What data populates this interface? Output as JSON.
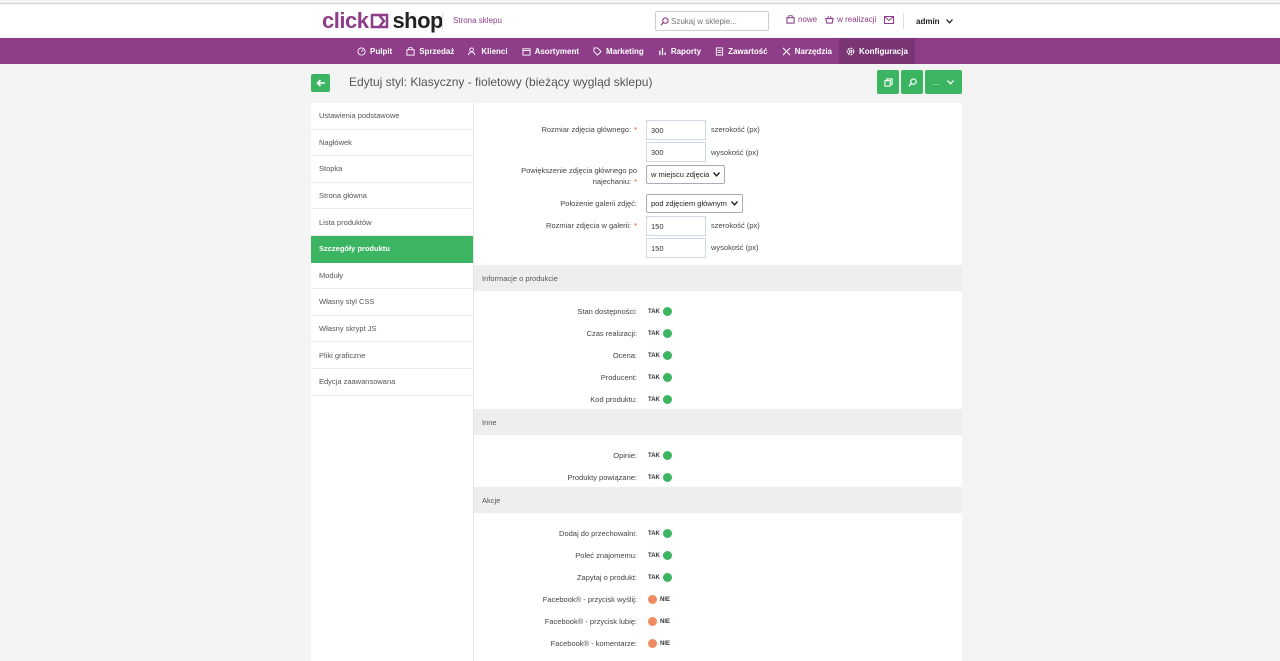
{
  "brand": {
    "logo_left": "click",
    "logo_right": "shop",
    "store_link": "Strona sklepu",
    "accent": "#8e3e88",
    "green": "#3cb563"
  },
  "search": {
    "placeholder": "Szukaj w sklepie..."
  },
  "top_links": {
    "new": "nowe",
    "in_progress": "w realizacji",
    "user": "admin"
  },
  "nav": [
    {
      "label": "Pulpit",
      "icon": "dashboard-icon"
    },
    {
      "label": "Sprzedaż",
      "icon": "cart-icon"
    },
    {
      "label": "Klienci",
      "icon": "users-icon"
    },
    {
      "label": "Asortyment",
      "icon": "box-icon"
    },
    {
      "label": "Marketing",
      "icon": "tag-icon"
    },
    {
      "label": "Raporty",
      "icon": "chart-icon"
    },
    {
      "label": "Zawartość",
      "icon": "page-icon"
    },
    {
      "label": "Narzędzia",
      "icon": "tools-icon"
    },
    {
      "label": "Konfiguracja",
      "icon": "gear-icon"
    }
  ],
  "page": {
    "title": "Edytuj styl: Klasyczny - fioletowy (bieżący wygląd sklepu)",
    "more_label": "..."
  },
  "sidebar": [
    "Ustawienia podstawowe",
    "Nagłówek",
    "Stopka",
    "Strona główna",
    "Lista produktów",
    "Szczegóły produktu",
    "Moduły",
    "Własny styl CSS",
    "Własny skrypt JS",
    "Pliki graficzne",
    "Edycja zaawansowana"
  ],
  "form": {
    "main_image_label": "Rozmiar zdjęcia głównego:",
    "main_width": "300",
    "main_height": "300",
    "width_unit": "szerokość (px)",
    "height_unit": "wysokość (px)",
    "zoom_label": "Powiększenie zdjęcia głównego po najechaniu:",
    "zoom_value": "w miejscu zdjęcia",
    "gallery_pos_label": "Położenie galerii zdjęć:",
    "gallery_pos_value": "pod zdjęciem głównym",
    "gallery_size_label": "Rozmiar zdjęcia w galerii:",
    "gallery_width": "150",
    "gallery_height": "150"
  },
  "sections": {
    "info": "Informacje o produkcie",
    "other": "Inne",
    "actions": "Akcje"
  },
  "toggles": {
    "availability": {
      "label": "Stan dostępności:",
      "value": "TAK"
    },
    "lead_time": {
      "label": "Czas realizacji:",
      "value": "TAK"
    },
    "rating": {
      "label": "Ocena:",
      "value": "TAK"
    },
    "producer": {
      "label": "Producent:",
      "value": "TAK"
    },
    "code": {
      "label": "Kod produktu:",
      "value": "TAK"
    },
    "reviews": {
      "label": "Opinie:",
      "value": "TAK"
    },
    "related": {
      "label": "Produkty powiązane:",
      "value": "TAK"
    },
    "storage": {
      "label": "Dodaj do przechowalni:",
      "value": "TAK"
    },
    "recommend": {
      "label": "Poleć znajomemu:",
      "value": "TAK"
    },
    "ask": {
      "label": "Zapytaj o produkt:",
      "value": "TAK"
    },
    "fb_send": {
      "label": "Facebook® - przycisk wyślij:",
      "value": "NIE"
    },
    "fb_like": {
      "label": "Facebook® - przycisk lubię:",
      "value": "NIE"
    },
    "fb_comments": {
      "label": "Facebook® - komentarze:",
      "value": "NIE"
    }
  }
}
